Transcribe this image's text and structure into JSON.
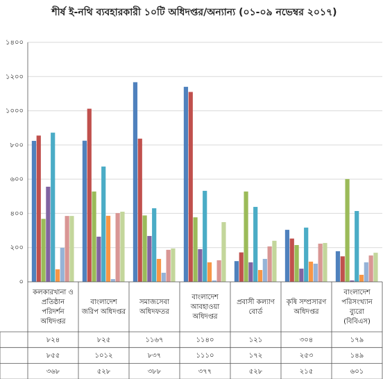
{
  "chart_data": {
    "type": "bar",
    "title": "শীর্ষ ই-নথি ব্যবহারকারী ১০টি অধিদপ্তর/অন্যান্য (০১-০৯ নভেম্বর ২০১৭)",
    "categories": [
      [
        "কলকারখানা ও",
        "প্রতিষ্ঠান",
        "পরিদর্শন",
        "অধিদপ্তর"
      ],
      [
        "বাংলাদেশ",
        "জরিপ অধিদপ্তর"
      ],
      [
        "সমাজসেবা",
        "অধিদফতর"
      ],
      [
        "বাংলাদেশ",
        "আবহাওয়া",
        "অধিদপ্তর"
      ],
      [
        "প্রবাসী কল্যাণ",
        "বোর্ড"
      ],
      [
        "কৃষি সম্প্রসারণ",
        "অধিদপ্তর"
      ],
      [
        "বাংলাদেশ",
        "পরিসংখ্যান",
        "ব্যুরো",
        "(বিবিএস)"
      ]
    ],
    "series": [
      {
        "color": "#4f81bd",
        "values": [
          824,
          825,
          1167,
          1140,
          121,
          304,
          179
        ],
        "value_labels": [
          "৮২৪",
          "৮২৫",
          "১১৬৭",
          "১১৪০",
          "১২১",
          "৩০৪",
          "১৭৯"
        ]
      },
      {
        "color": "#c0504d",
        "values": [
          855,
          1012,
          837,
          1110,
          172,
          253,
          149
        ],
        "value_labels": [
          "৮৫৫",
          "১০১২",
          "৮৩৭",
          "১১১০",
          "১৭২",
          "২৫৩",
          "১৪৯"
        ]
      },
      {
        "color": "#9bbb59",
        "values": [
          368,
          528,
          388,
          377,
          528,
          215,
          601
        ],
        "value_labels": [
          "৩৬৮",
          "৫২৮",
          "৩৮৮",
          "৩৭৭",
          "৫২৮",
          "২১৫",
          "৬০১"
        ]
      },
      {
        "color": "#8064a2",
        "values": [
          556,
          264,
          268,
          191,
          114,
          77,
          8
        ]
      },
      {
        "color": "#4bacc6",
        "values": [
          872,
          674,
          430,
          532,
          438,
          317,
          414
        ]
      },
      {
        "color": "#f79646",
        "values": [
          73,
          386,
          134,
          114,
          69,
          118,
          41
        ]
      },
      {
        "color": "#95b3d7",
        "values": [
          199,
          16,
          53,
          8,
          134,
          106,
          114
        ]
      },
      {
        "color": "#d99694",
        "values": [
          385,
          402,
          187,
          126,
          207,
          223,
          154
        ]
      },
      {
        "color": "#c3d69b",
        "values": [
          385,
          410,
          195,
          349,
          240,
          227,
          170
        ]
      }
    ],
    "ylim": [
      0,
      1400
    ],
    "yticks": [
      {
        "value": 0,
        "label": "০"
      },
      {
        "value": 200,
        "label": "২০০"
      },
      {
        "value": 400,
        "label": "৪০০"
      },
      {
        "value": 600,
        "label": "৬০০"
      },
      {
        "value": 800,
        "label": "৮০০"
      },
      {
        "value": 1000,
        "label": "১০০০"
      },
      {
        "value": 1200,
        "label": "১২০০"
      },
      {
        "value": 1400,
        "label": "১৪০০"
      }
    ],
    "grid": true
  }
}
